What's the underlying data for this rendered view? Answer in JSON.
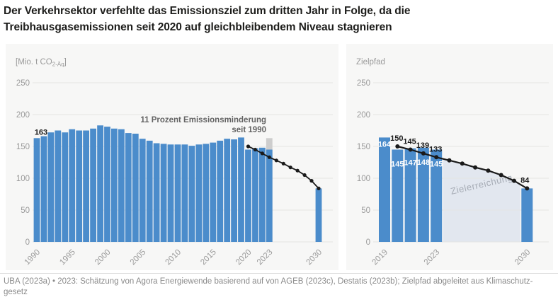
{
  "title": {
    "line1": "Der Verkehrsektor verfehlte das Emissionsziel zum dritten Jahr in Folge, da die",
    "line2": "Treibhausgasemissionen seit 2020 auf gleichbleibendem Niveau stagnieren"
  },
  "footer": {
    "line1": "UBA (2023a) • 2023: Schätzung von Agora Energiewende basierend auf von AGEB (2023c), Destatis (2023b); Zielpfad abgeleitet aus Klimaschutz-",
    "line2": "gesetz"
  },
  "colors": {
    "bar_blue": "#4b8ccb",
    "reference_gray": "#cdcdcd",
    "line_black": "#1a1a1a",
    "grid": "#e4e4e3",
    "panel_bg": "#f7f7f6",
    "shaded_area": "#e2e7ef",
    "shaded_label_text": "#a6acb5",
    "axis_text": "#9a9a9a",
    "annotation_text": "#636363",
    "title_text": "#1d1d1b",
    "footer_text": "#8a8a8a",
    "bar_label_white": "#ffffff"
  },
  "chart_data": [
    {
      "type": "bar",
      "panel": "left",
      "ylabel_parts": [
        "[Mio. t CO",
        "2-Äq",
        "]"
      ],
      "y_ticks": [
        0,
        50,
        100,
        150,
        200,
        250
      ],
      "ylim": [
        0,
        260
      ],
      "grid": true,
      "bar_years": [
        1990,
        1991,
        1992,
        1993,
        1994,
        1995,
        1996,
        1997,
        1998,
        1999,
        2000,
        2001,
        2002,
        2003,
        2004,
        2005,
        2006,
        2007,
        2008,
        2009,
        2010,
        2011,
        2012,
        2013,
        2014,
        2015,
        2016,
        2017,
        2018,
        2019,
        2020,
        2021,
        2022,
        2023,
        2030
      ],
      "bar_values": [
        163,
        166,
        172,
        175,
        172,
        177,
        175,
        175,
        178,
        183,
        181,
        178,
        177,
        171,
        170,
        162,
        159,
        155,
        154,
        153,
        153,
        153,
        151,
        153,
        154,
        156,
        159,
        162,
        161,
        164,
        145,
        147,
        148,
        145,
        84
      ],
      "bar_top_label": {
        "year": 1990,
        "text": "163"
      },
      "reference_bar": {
        "year": 2023,
        "value": 163
      },
      "annotation": {
        "lines": [
          "11 Prozent Emissionsminderung",
          "seit 1990"
        ]
      },
      "line_series": {
        "name": "Zielpfad",
        "years": [
          2020,
          2021,
          2022,
          2023,
          2024,
          2025,
          2026,
          2027,
          2028,
          2029,
          2030
        ],
        "values": [
          150,
          145,
          139,
          133,
          128,
          123,
          117,
          112,
          105,
          96,
          84
        ]
      },
      "x_tick_years": [
        1990,
        1995,
        2000,
        2005,
        2010,
        2015,
        2020,
        2023,
        2030
      ]
    },
    {
      "type": "bar",
      "panel": "right",
      "panel_title": "Zielpfad",
      "y_ticks": [
        0,
        50,
        100,
        150,
        200,
        250
      ],
      "ylim": [
        0,
        260
      ],
      "grid": true,
      "bar_years": [
        2019,
        2020,
        2021,
        2022,
        2023,
        2030
      ],
      "bar_values": [
        164,
        145,
        147,
        148,
        145,
        84
      ],
      "bar_inner_labels": [
        "164",
        "145",
        "147",
        "148",
        "145"
      ],
      "line_series": {
        "name": "Zielpfad",
        "years": [
          2020,
          2021,
          2022,
          2023,
          2024,
          2025,
          2026,
          2027,
          2028,
          2029,
          2030
        ],
        "values": [
          150,
          145,
          139,
          133,
          128,
          123,
          117,
          112,
          105,
          96,
          84
        ]
      },
      "line_point_labels": {
        "2020": "150",
        "2021": "145",
        "2022": "139",
        "2023": "133",
        "2030": "84"
      },
      "shaded_area": {
        "label": "Zielerreichung",
        "from_year": 2023,
        "to_year": 2030
      },
      "x_tick_years": [
        2019,
        2023,
        2030
      ]
    }
  ]
}
